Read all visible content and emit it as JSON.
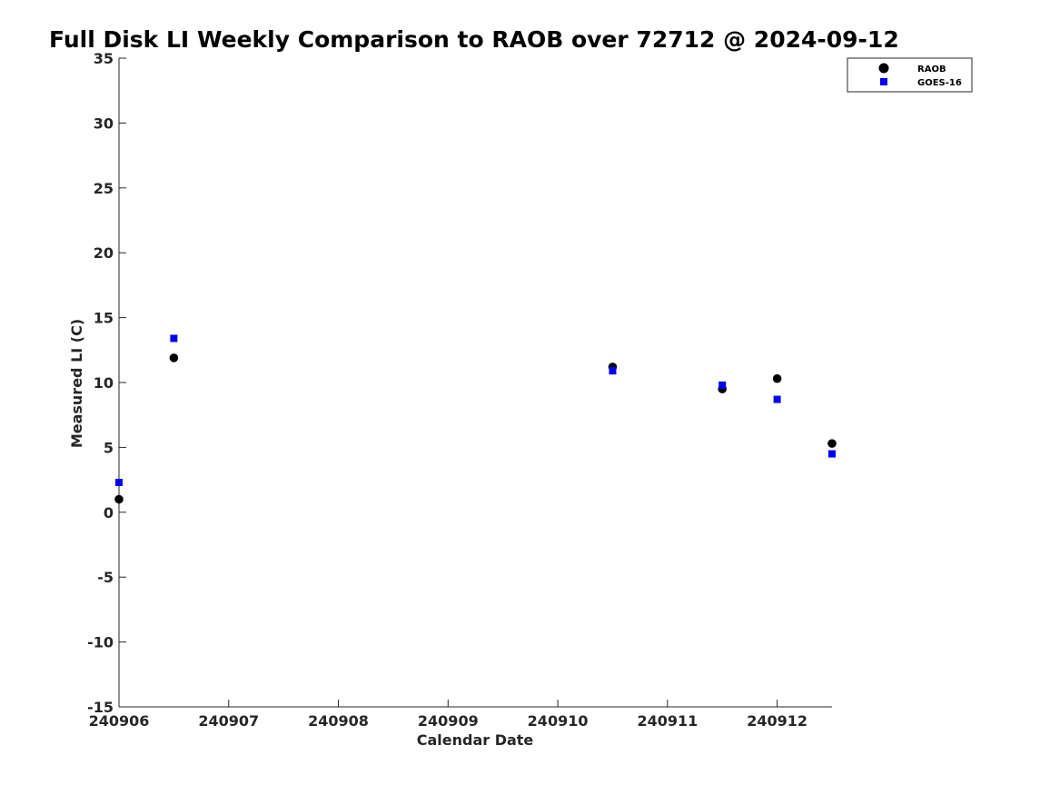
{
  "chart_data": {
    "type": "scatter",
    "title": "Full Disk LI Weekly Comparison to RAOB over 72712 @ 2024-09-12",
    "xlabel": "Calendar Date",
    "ylabel": "Measured LI (C)",
    "xlim": [
      0,
      6.5
    ],
    "ylim": [
      -15,
      35
    ],
    "x_ticks": [
      0,
      1,
      2,
      3,
      4,
      5,
      6
    ],
    "x_tick_labels": [
      "240906",
      "240907",
      "240908",
      "240909",
      "240910",
      "240911",
      "240912"
    ],
    "y_ticks": [
      -15,
      -10,
      -5,
      0,
      5,
      10,
      15,
      20,
      25,
      30,
      35
    ],
    "y_tick_labels": [
      "-15",
      "-10",
      "-5",
      "0",
      "5",
      "10",
      "15",
      "20",
      "25",
      "30",
      "35"
    ],
    "grid": false,
    "legend_position": "top-right",
    "series": [
      {
        "name": "RAOB",
        "marker": "circle",
        "color": "#000000",
        "points": [
          {
            "x": 0,
            "y": 1.0
          },
          {
            "x": 0.5,
            "y": 11.9
          },
          {
            "x": 4.5,
            "y": 11.2
          },
          {
            "x": 5.5,
            "y": 9.5
          },
          {
            "x": 6.0,
            "y": 10.3
          },
          {
            "x": 6.5,
            "y": 5.3
          }
        ]
      },
      {
        "name": "GOES-16",
        "marker": "square",
        "color": "#0000ee",
        "points": [
          {
            "x": 0,
            "y": 2.3
          },
          {
            "x": 0.5,
            "y": 13.4
          },
          {
            "x": 4.5,
            "y": 10.9
          },
          {
            "x": 5.5,
            "y": 9.8
          },
          {
            "x": 6.0,
            "y": 8.7
          },
          {
            "x": 6.5,
            "y": 4.5
          }
        ]
      }
    ]
  }
}
